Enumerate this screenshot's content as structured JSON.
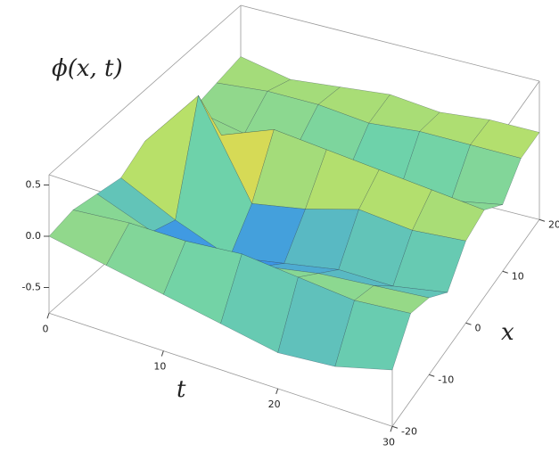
{
  "chart_data": {
    "type": "surface3d",
    "z_label": "ϕ(x, t)",
    "t_label": "t",
    "x_label": "x",
    "t": [
      0,
      5,
      10,
      15,
      20,
      25,
      30
    ],
    "x": [
      -20,
      -15,
      -10,
      -5,
      0,
      5,
      10,
      15,
      20
    ],
    "z": [
      [
        0.0,
        0.05,
        0.0,
        -0.05,
        0.1,
        0.05,
        0.0,
        0.05,
        0.1
      ],
      [
        -0.1,
        0.1,
        -0.2,
        -0.3,
        0.7,
        0.1,
        -0.1,
        0.1,
        0.0
      ],
      [
        -0.2,
        0.1,
        -0.3,
        -0.5,
        -0.2,
        0.3,
        -0.1,
        0.1,
        0.05
      ],
      [
        -0.3,
        0.15,
        -0.2,
        -0.4,
        -0.1,
        0.25,
        -0.2,
        0.05,
        0.1
      ],
      [
        -0.4,
        0.1,
        -0.1,
        -0.3,
        0.05,
        0.2,
        -0.25,
        0.1,
        0.05
      ],
      [
        -0.35,
        0.05,
        -0.05,
        -0.3,
        0.0,
        0.15,
        -0.2,
        0.1,
        0.1
      ],
      [
        -0.2,
        0.1,
        0.0,
        -0.2,
        0.05,
        0.1,
        -0.1,
        0.1,
        0.1
      ]
    ],
    "tlim": [
      0,
      30
    ],
    "xlim": [
      -20,
      20
    ],
    "zlim": [
      -0.75,
      0.6
    ],
    "tticks": [
      0,
      10,
      20,
      30
    ],
    "xticks": [
      -20,
      -10,
      0,
      10,
      20
    ],
    "zticks": [
      -0.5,
      {
        "value": 0,
        "label": "0.0"
      },
      0.5
    ]
  }
}
